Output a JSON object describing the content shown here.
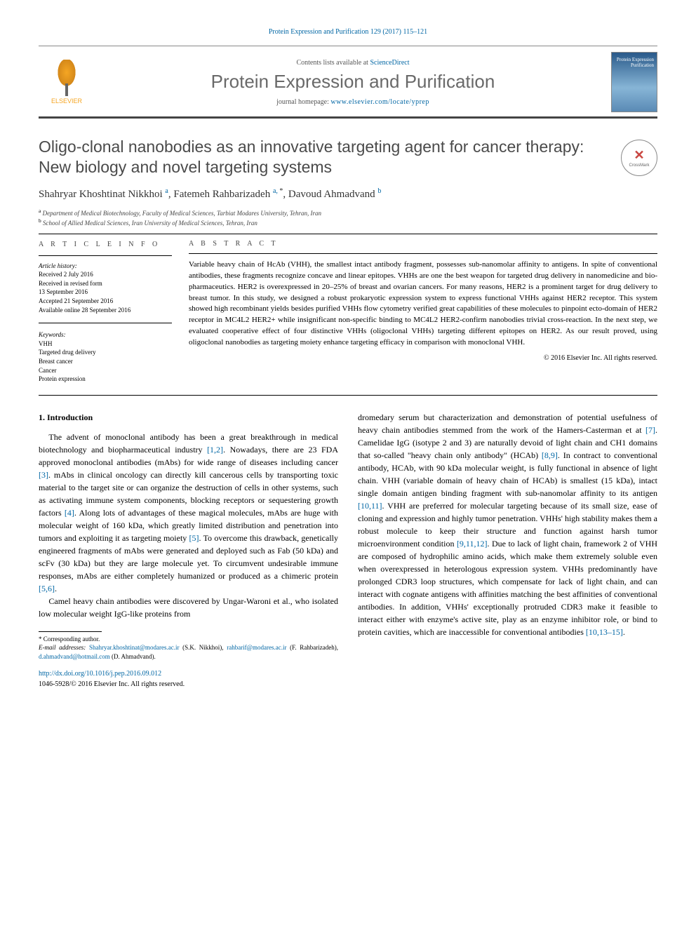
{
  "header": {
    "citation": "Protein Expression and Purification 129 (2017) 115–121",
    "contents_prefix": "Contents lists available at ",
    "contents_link": "ScienceDirect",
    "journal_name": "Protein Expression and Purification",
    "homepage_prefix": "journal homepage: ",
    "homepage_url": "www.elsevier.com/locate/yprep",
    "publisher": "ELSEVIER",
    "cover_text": "Protein Expression Purification"
  },
  "article": {
    "title": "Oligo-clonal nanobodies as an innovative targeting agent for cancer therapy: New biology and novel targeting systems",
    "crossmark": "CrossMark",
    "authors_html": "Shahryar Khoshtinat Nikkhoi <sup>a</sup>, Fatemeh Rahbarizadeh <sup>a, *</sup>, Davoud Ahmadvand <sup>b</sup>",
    "authors": [
      {
        "name": "Shahryar Khoshtinat Nikkhoi",
        "affil": "a",
        "corr": false
      },
      {
        "name": "Fatemeh Rahbarizadeh",
        "affil": "a",
        "corr": true
      },
      {
        "name": "Davoud Ahmadvand",
        "affil": "b",
        "corr": false
      }
    ],
    "affiliations": [
      {
        "sup": "a",
        "text": "Department of Medical Biotechnology, Faculty of Medical Sciences, Tarbiat Modares University, Tehran, Iran"
      },
      {
        "sup": "b",
        "text": "School of Allied Medical Sciences, Iran University of Medical Sciences, Tehran, Iran"
      }
    ]
  },
  "info": {
    "heading": "A R T I C L E   I N F O",
    "history_label": "Article history:",
    "history": [
      "Received 2 July 2016",
      "Received in revised form",
      "13 September 2016",
      "Accepted 21 September 2016",
      "Available online 28 September 2016"
    ],
    "keywords_label": "Keywords:",
    "keywords": [
      "VHH",
      "Targeted drug delivery",
      "Breast cancer",
      "Cancer",
      "Protein expression"
    ]
  },
  "abstract": {
    "heading": "A B S T R A C T",
    "text": "Variable heavy chain of HcAb (VHH), the smallest intact antibody fragment, possesses sub-nanomolar affinity to antigens. In spite of conventional antibodies, these fragments recognize concave and linear epitopes. VHHs are one the best weapon for targeted drug delivery in nanomedicine and bio-pharmaceutics. HER2 is overexpressed in 20–25% of breast and ovarian cancers. For many reasons, HER2 is a prominent target for drug delivery to breast tumor. In this study, we designed a robust prokaryotic expression system to express functional VHHs against HER2 receptor. This system showed high recombinant yields besides purified VHHs flow cytometry verified great capabilities of these molecules to pinpoint ecto-domain of HER2 receptor in MC4L2 HER2+ while insignificant non-specific binding to MC4L2 HER2-confirm nanobodies trivial cross-reaction. In the next step, we evaluated cooperative effect of four distinctive VHHs (oligoclonal VHHs) targeting different epitopes on HER2. As our result proved, using oligoclonal nanobodies as targeting moiety enhance targeting efficacy in comparison with monoclonal VHH.",
    "copyright": "© 2016 Elsevier Inc. All rights reserved."
  },
  "body": {
    "section1_heading": "1. Introduction",
    "col1_p1": "The advent of monoclonal antibody has been a great breakthrough in medical biotechnology and biopharmaceutical industry [1,2]. Nowadays, there are 23 FDA approved monoclonal antibodies (mAbs) for wide range of diseases including cancer [3]. mAbs in clinical oncology can directly kill cancerous cells by transporting toxic material to the target site or can organize the destruction of cells in other systems, such as activating immune system components, blocking receptors or sequestering growth factors [4]. Along lots of advantages of these magical molecules, mAbs are huge with molecular weight of 160 kDa, which greatly limited distribution and penetration into tumors and exploiting it as targeting moiety [5]. To overcome this drawback, genetically engineered fragments of mAbs were generated and deployed such as Fab (50 kDa) and scFv (30 kDa) but they are large molecule yet. To circumvent undesirable immune responses, mAbs are either completely humanized or produced as a chimeric protein [5,6].",
    "col1_p2": "Camel heavy chain antibodies were discovered by Ungar-Waroni et al., who isolated low molecular weight IgG-like proteins from",
    "col2_p1": "dromedary serum but characterization and demonstration of potential usefulness of heavy chain antibodies stemmed from the work of the Hamers-Casterman et at [7]. Camelidae IgG (isotype 2 and 3) are naturally devoid of light chain and CH1 domains that so-called \"heavy chain only antibody\" (HCAb) [8,9]. In contract to conventional antibody, HCAb, with 90 kDa molecular weight, is fully functional in absence of light chain. VHH (variable domain of heavy chain of HCAb) is smallest (15 kDa), intact single domain antigen binding fragment with sub-nanomolar affinity to its antigen [10,11]. VHH are preferred for molecular targeting because of its small size, ease of cloning and expression and highly tumor penetration. VHHs' high stability makes them a robust molecule to keep their structure and function against harsh tumor microenvironment condition [9,11,12]. Due to lack of light chain, framework 2 of VHH are composed of hydrophilic amino acids, which make them extremely soluble even when overexpressed in heterologous expression system. VHHs predominantly have prolonged CDR3 loop structures, which compensate for lack of light chain, and can interact with cognate antigens with affinities matching the best affinities of conventional antibodies. In addition, VHHs' exceptionally protruded CDR3 make it feasible to interact either with enzyme's active site, play as an enzyme inhibitor role, or bind to protein cavities, which are inaccessible for conventional antibodies [10,13–15]."
  },
  "footnotes": {
    "corr_label": "* Corresponding author.",
    "email_label": "E-mail addresses:",
    "emails": [
      {
        "addr": "Shahryar.khoshtinat@modares.ac.ir",
        "name": "(S.K. Nikkhoi)"
      },
      {
        "addr": "rahbarif@modares.ac.ir",
        "name": "(F. Rahbarizadeh)"
      },
      {
        "addr": "d.ahmadvand@hotmail.com",
        "name": "(D. Ahmadvand)"
      }
    ],
    "doi": "http://dx.doi.org/10.1016/j.pep.2016.09.012",
    "issn_copy": "1046-5928/© 2016 Elsevier Inc. All rights reserved."
  },
  "refs_in_text": [
    "[1,2]",
    "[3]",
    "[4]",
    "[5]",
    "[5,6]",
    "[7]",
    "[8,9]",
    "[10,11]",
    "[9,11,12]",
    "[10,13–15]"
  ],
  "colors": {
    "link": "#0066a4",
    "heading_gray": "#4a4a4a",
    "text": "#000000"
  }
}
